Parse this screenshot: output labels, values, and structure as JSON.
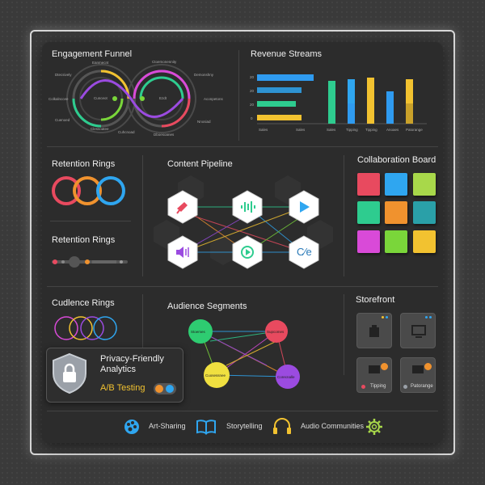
{
  "sections": {
    "engagement_funnel": "Engagement Funnel",
    "revenue_streams": "Revenue Streams",
    "retention_rings_1": "Retention Rings",
    "content_pipeline": "Content Pipeline",
    "collaboration_board": "Collaboration Board",
    "retention_rings_2": "Retention Rings",
    "cudience_rings": "Cudlence Rings",
    "audience_segments": "Audience Segments",
    "storefront": "Storefront"
  },
  "funnel": {
    "labels": [
      "Dtecsively",
      "Eanmecnt",
      "Ctoemonennity",
      "Demonshny",
      "Colkalnccee",
      "Cuenoed",
      "Dtecsively",
      "Buelaldsve",
      "Aconpetons",
      "Nnosiad",
      "Clessoatee",
      "Cuhcnoad",
      "Ezdt",
      "Dboesoanes",
      "Sutbdaroms"
    ],
    "center_left": "Cunceot",
    "center_right": "Ezdt"
  },
  "revenue": {
    "y_ticks": [
      "20",
      "20",
      "20",
      "0"
    ],
    "h_bar_labels": [
      "Sales",
      "Sales"
    ],
    "v_bar_labels": [
      "Sales",
      "Tipping",
      "Tipping",
      "Anoaes",
      "Patorange"
    ],
    "colors": {
      "blue": "#2f9bf0",
      "green": "#2ecc8f",
      "yellow": "#f2c230"
    }
  },
  "pipeline": {
    "icons": [
      "megaphone-icon",
      "audio-wave-icon",
      "play-icon",
      "sound-icon",
      "play-circle-icon",
      "code-icon"
    ],
    "code_glyph": "C⁄e"
  },
  "segments": {
    "nodes": [
      "Stoemes",
      "Supcomes",
      "Cuosessnee",
      "Corecnalle"
    ],
    "colors": [
      "#2ecc71",
      "#e84a5f",
      "#f0e040",
      "#9b4be0"
    ]
  },
  "privacy": {
    "title": "Privacy-Friendly",
    "subtitle": "Analytics",
    "ab_label": "A/B Testing"
  },
  "storefront_cards": [
    "Tipping",
    "Patorange"
  ],
  "footer": {
    "art_sharing": "Art-Sharing",
    "storytelling": "Storytelling",
    "audio_communities": "Audio Communities"
  },
  "sticky_colors": [
    "#e84a5f",
    "#2fa6f0",
    "#a8d84a",
    "#2ecc8f",
    "#f0922e",
    "#2aa0a8",
    "#d94ad8",
    "#7ad63a",
    "#f2c230"
  ]
}
